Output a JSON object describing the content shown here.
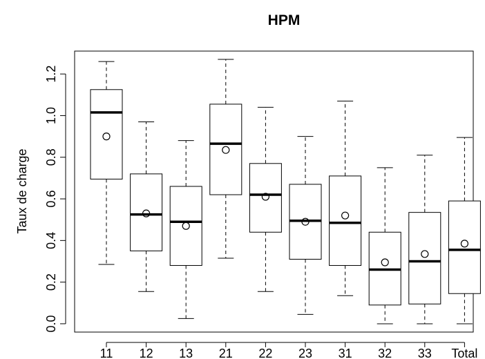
{
  "chart_data": {
    "type": "boxplot",
    "title": "HPM",
    "xlabel": "",
    "ylabel": "Taux de charge",
    "ylim": [
      -0.04,
      1.31
    ],
    "yticks": [
      0.0,
      0.2,
      0.4,
      0.6,
      0.8,
      1.0,
      1.2
    ],
    "ytick_labels": [
      "0.0",
      "0.2",
      "0.4",
      "0.6",
      "0.8",
      "1.0",
      "1.2"
    ],
    "grid": false,
    "legend": "none",
    "categories": [
      "11",
      "12",
      "13",
      "21",
      "22",
      "23",
      "31",
      "32",
      "33",
      "Total"
    ],
    "boxes": [
      {
        "min": 0.285,
        "q1": 0.695,
        "median": 1.015,
        "q3": 1.125,
        "max": 1.26,
        "mean": 0.9
      },
      {
        "min": 0.155,
        "q1": 0.35,
        "median": 0.525,
        "q3": 0.72,
        "max": 0.97,
        "mean": 0.53
      },
      {
        "min": 0.025,
        "q1": 0.28,
        "median": 0.49,
        "q3": 0.66,
        "max": 0.88,
        "mean": 0.47
      },
      {
        "min": 0.315,
        "q1": 0.62,
        "median": 0.865,
        "q3": 1.055,
        "max": 1.27,
        "mean": 0.835
      },
      {
        "min": 0.155,
        "q1": 0.44,
        "median": 0.62,
        "q3": 0.77,
        "max": 1.04,
        "mean": 0.61
      },
      {
        "min": 0.045,
        "q1": 0.31,
        "median": 0.495,
        "q3": 0.67,
        "max": 0.9,
        "mean": 0.49
      },
      {
        "min": 0.135,
        "q1": 0.28,
        "median": 0.485,
        "q3": 0.71,
        "max": 1.07,
        "mean": 0.52
      },
      {
        "min": 0.0,
        "q1": 0.09,
        "median": 0.26,
        "q3": 0.44,
        "max": 0.75,
        "mean": 0.295
      },
      {
        "min": 0.0,
        "q1": 0.095,
        "median": 0.3,
        "q3": 0.535,
        "max": 0.81,
        "mean": 0.335
      },
      {
        "min": 0.0,
        "q1": 0.145,
        "median": 0.355,
        "q3": 0.59,
        "max": 0.895,
        "mean": 0.385
      }
    ],
    "colors": {
      "stroke": "#000000",
      "background": "#ffffff"
    }
  }
}
